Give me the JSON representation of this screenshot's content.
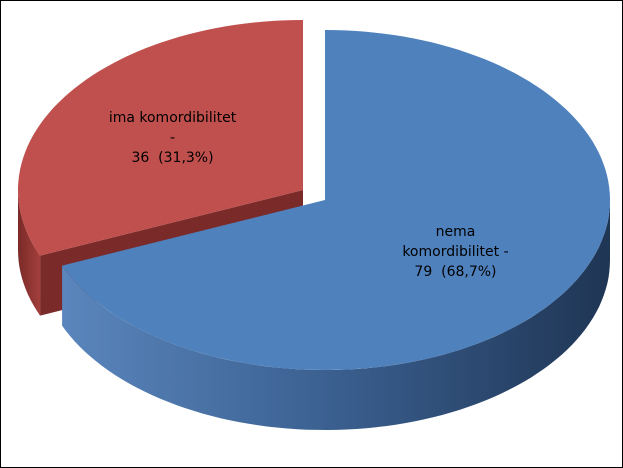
{
  "chart_data": {
    "type": "pie3d",
    "categories": [
      "ima komordibilitet -",
      "nema komordibilitet -"
    ],
    "values": [
      36,
      79
    ],
    "value_labels": [
      "36  (31,3%)",
      "79  (68,7%)"
    ],
    "colors": [
      "#c0504d",
      "#4f81bd"
    ]
  }
}
